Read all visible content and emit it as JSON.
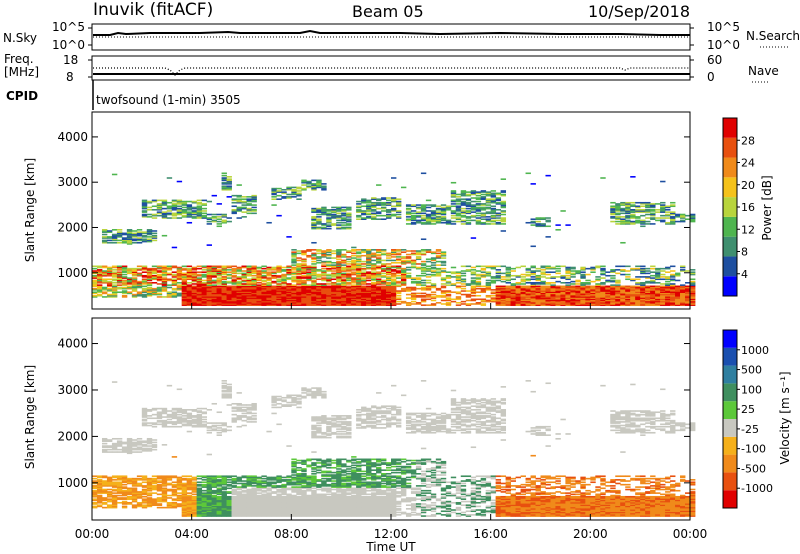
{
  "header": {
    "title": "Inuvik (fitACF)",
    "beam": "Beam 05",
    "date": "10/Sep/2018"
  },
  "strip_nsky": {
    "left_label": "N.Sky",
    "right_label": "N.Search",
    "ticks_left": [
      "10^5",
      "10^0"
    ],
    "ticks_right": [
      "10^5",
      "10^0"
    ]
  },
  "strip_freq": {
    "left_label_1": "Freq.",
    "left_label_2": "[MHz]",
    "ticks_left": [
      "18",
      "8"
    ],
    "ticks_right": [
      "60",
      "0"
    ],
    "right_label": "Nave",
    "cpid_label": "CPID",
    "cpid_value": "twofsound (1-min) 3505"
  },
  "colors": {
    "power": [
      "#0000ff",
      "#1e4fa0",
      "#3f8f6f",
      "#4fb54f",
      "#b8d43c",
      "#f5c21a",
      "#f08a1a",
      "#e8500f",
      "#e00000"
    ],
    "velocity": [
      "#e00000",
      "#e8500f",
      "#f08a1a",
      "#f5b01a",
      "#c8c8c0",
      "#5cc83a",
      "#3f8f5f",
      "#2f7fa0",
      "#1a4faf",
      "#0000ff"
    ]
  },
  "chart_data": [
    {
      "type": "heatmap",
      "name": "power",
      "xlabel": "",
      "ylabel": "Slant Range [km]",
      "x_ticks": [
        "00:00",
        "04:00",
        "08:00",
        "12:00",
        "16:00",
        "20:00",
        "00:00"
      ],
      "y_ticks": [
        "1000",
        "2000",
        "3000",
        "4000"
      ],
      "ylim": [
        200,
        4550
      ],
      "colorbar_label": "Power [dB]",
      "colorbar_ticks": [
        "28",
        "24",
        "20",
        "16",
        "12",
        "8",
        "4"
      ],
      "colorbar_range": [
        0,
        32
      ]
    },
    {
      "type": "heatmap",
      "name": "velocity",
      "xlabel": "Time UT",
      "ylabel": "Slant Range [km]",
      "x_ticks": [
        "00:00",
        "04:00",
        "08:00",
        "12:00",
        "16:00",
        "20:00",
        "00:00"
      ],
      "y_ticks": [
        "1000",
        "2000",
        "3000",
        "4000"
      ],
      "ylim": [
        200,
        4550
      ],
      "colorbar_label": "Velocity [m s⁻¹]",
      "colorbar_ticks": [
        "1000",
        "500",
        "100",
        "25",
        "-25",
        "-100",
        "-500",
        "-1000"
      ]
    }
  ]
}
